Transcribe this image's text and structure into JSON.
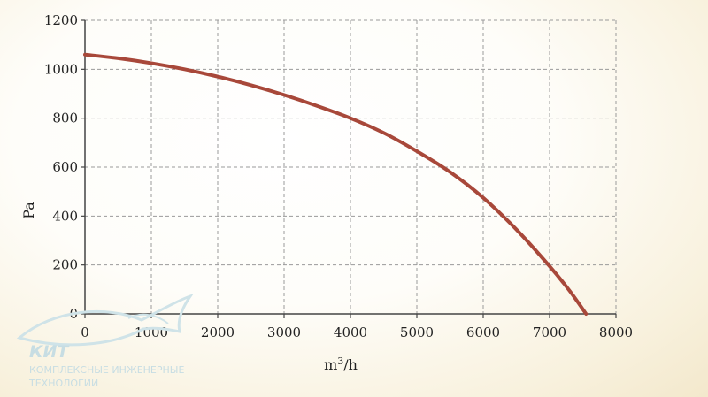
{
  "chart_data": {
    "type": "line",
    "title": "",
    "xlabel_base": "m",
    "xlabel_sup": "3",
    "xlabel_tail": "/h",
    "ylabel": "Pa",
    "xlim": [
      0,
      8000
    ],
    "ylim": [
      0,
      1200
    ],
    "x_ticks": [
      "0",
      "1000",
      "2000",
      "3000",
      "4000",
      "5000",
      "6000",
      "7000",
      "8000"
    ],
    "y_ticks": [
      "0",
      "200",
      "400",
      "600",
      "800",
      "1000",
      "1200"
    ],
    "grid": true,
    "series": [
      {
        "color": "#a8483a",
        "x": [
          0,
          500,
          1000,
          1500,
          2000,
          2500,
          3000,
          3500,
          4000,
          4500,
          5000,
          5500,
          6000,
          6500,
          7000,
          7300,
          7550
        ],
        "y": [
          1060,
          1045,
          1025,
          1000,
          970,
          935,
          895,
          850,
          800,
          740,
          665,
          580,
          475,
          345,
          195,
          95,
          0
        ]
      }
    ]
  },
  "logo": {
    "name": "КИТ",
    "line1": "КОМПЛЕКСНЫЕ ИНЖЕНЕРНЫЕ",
    "line2": "ТЕХНОЛОГИИ"
  }
}
